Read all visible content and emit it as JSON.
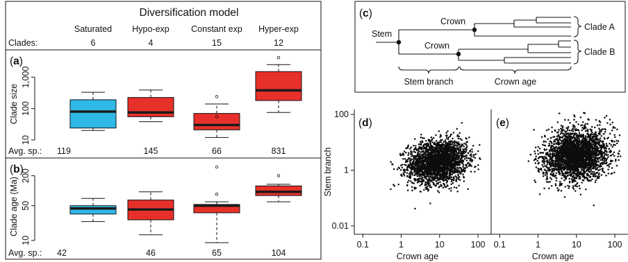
{
  "colors": {
    "blue": "#2EB9E6",
    "red": "#E8302A",
    "median": "#1a1a1a",
    "ink": "#111111",
    "points": "#0d0d0d"
  },
  "left_panel": {
    "title": "Diversification model",
    "clades_label": "Clades:",
    "models": [
      {
        "name": "Saturated",
        "clades": "6",
        "color": "blue"
      },
      {
        "name": "Hypo-exp",
        "clades": "4",
        "color": "red"
      },
      {
        "name": "Constant exp",
        "clades": "15",
        "color": "red"
      },
      {
        "name": "Hyper-exp",
        "clades": "12",
        "color": "red"
      }
    ]
  },
  "panel_c": {
    "letter": "c",
    "labels": {
      "stem": "Stem",
      "crown_top": "Crown",
      "crown_bottom": "Crown",
      "clade_a": "Clade A",
      "clade_b": "Clade B",
      "stem_branch": "Stem branch",
      "crown_age": "Crown age"
    }
  },
  "scatter_common": {
    "ylabel": "Stem branch",
    "xlabel": "Crown age",
    "x_ticks": [
      "0.1",
      "1",
      "10",
      "100"
    ],
    "y_ticks": [
      "100",
      "1",
      "0.01"
    ]
  },
  "chart_data": [
    {
      "panel": "a",
      "type": "box",
      "ylabel": "Clade size",
      "y_scale": "log",
      "ylim": [
        6,
        6000
      ],
      "y_ticks": [
        "10",
        "100",
        "1,000"
      ],
      "y_tick_values": [
        10,
        100,
        1000
      ],
      "categories": [
        "Saturated",
        "Hypo-exp",
        "Constant exp",
        "Hyper-exp"
      ],
      "boxes": [
        {
          "whisker_low": 20,
          "q1": 24,
          "median": 80,
          "q3": 190,
          "whisker_high": 330,
          "outliers": []
        },
        {
          "whisker_low": 38,
          "q1": 55,
          "median": 75,
          "q3": 225,
          "whisker_high": 390,
          "outliers": []
        },
        {
          "whisker_low": 12,
          "q1": 21,
          "median": 30,
          "q3": 70,
          "whisker_high": 140,
          "outliers": [
            55,
            240
          ]
        },
        {
          "whisker_low": 75,
          "q1": 180,
          "median": 380,
          "q3": 1500,
          "whisker_high": 2500,
          "outliers": [
            4200
          ]
        }
      ],
      "avg_label": "Avg. sp.:",
      "avg_values": [
        "119",
        "145",
        "66",
        "831"
      ]
    },
    {
      "panel": "b",
      "type": "box",
      "ylabel": "Clade age (Ma)",
      "y_scale": "log",
      "ylim": [
        7,
        400
      ],
      "y_ticks": [
        "10",
        "50",
        "200"
      ],
      "y_tick_values": [
        10,
        50,
        200
      ],
      "categories": [
        "Saturated",
        "Hypo-exp",
        "Constant exp",
        "Hyper-exp"
      ],
      "boxes": [
        {
          "whisker_low": 24,
          "q1": 34,
          "median": 44,
          "q3": 50,
          "whisker_high": 70,
          "outliers": []
        },
        {
          "whisker_low": 13,
          "q1": 26,
          "median": 42,
          "q3": 65,
          "whisker_high": 95,
          "outliers": []
        },
        {
          "whisker_low": 9,
          "q1": 36,
          "median": 50,
          "q3": 53,
          "whisker_high": 60,
          "outliers": [
            85,
            300
          ]
        },
        {
          "whisker_low": 60,
          "q1": 80,
          "median": 95,
          "q3": 125,
          "whisker_high": 135,
          "outliers": [
            200
          ]
        }
      ],
      "avg_label": "Avg. sp.:",
      "avg_values": [
        "42",
        "46",
        "65",
        "104"
      ]
    },
    {
      "panel": "d",
      "type": "scatter",
      "x_scale": "log",
      "y_scale": "log",
      "xlim": [
        0.06,
        220
      ],
      "ylim": [
        0.005,
        150
      ],
      "cloud": {
        "x_center_log10": 0.95,
        "x_sd_log10": 0.38,
        "y_center_log10": 0.3,
        "y_sd_log10": 0.38,
        "x_min": 0.45,
        "x_max": 120,
        "n_points": 2600
      }
    },
    {
      "panel": "e",
      "type": "scatter",
      "x_scale": "log",
      "y_scale": "log",
      "xlim": [
        0.06,
        220
      ],
      "ylim": [
        0.005,
        150
      ],
      "cloud": {
        "x_center_log10": 1.0,
        "x_sd_log10": 0.42,
        "y_center_log10": 0.55,
        "y_sd_log10": 0.45,
        "x_min": 0.45,
        "x_max": 150,
        "n_points": 2800
      }
    }
  ]
}
